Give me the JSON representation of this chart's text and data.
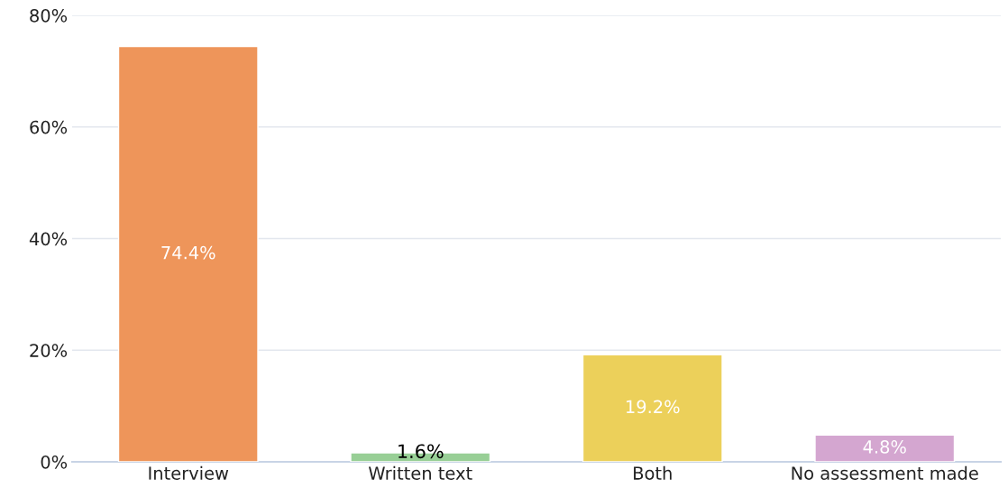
{
  "chart_data": {
    "type": "bar",
    "categories": [
      "Interview",
      "Written text",
      "Both",
      "No assessment made"
    ],
    "values": [
      74.4,
      1.6,
      19.2,
      4.8
    ],
    "colors": [
      "#ee955a",
      "#98cf96",
      "#ecd05a",
      "#d4a6d0"
    ],
    "value_labels": [
      "74.4%",
      "1.6%",
      "19.2%",
      "4.8%"
    ],
    "ylim": [
      0,
      80
    ],
    "yticks": [
      {
        "value": 0,
        "label": "0%"
      },
      {
        "value": 20,
        "label": "20%"
      },
      {
        "value": 40,
        "label": "40%"
      },
      {
        "value": 60,
        "label": "60%"
      },
      {
        "value": 80,
        "label": "80%"
      }
    ],
    "grid": "y"
  }
}
